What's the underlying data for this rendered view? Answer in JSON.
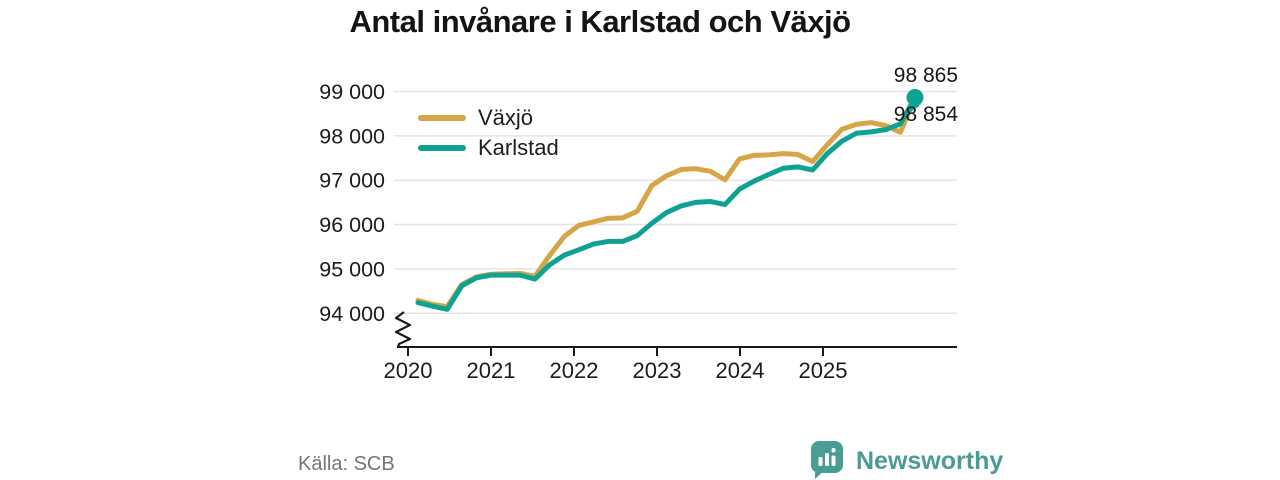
{
  "title": "Antal invånare i Karlstad och Växjö",
  "source": "Källa: SCB",
  "branding": {
    "name": "Newsworthy",
    "color": "#4A9C95"
  },
  "chart_data": {
    "type": "line",
    "title": "Antal invånare i Karlstad och Växjö",
    "ylabel": "",
    "xlabel": "",
    "grid": "horizontal",
    "y_axis": {
      "ticks": [
        {
          "label": "99 000",
          "value": 99000
        },
        {
          "label": "98 000",
          "value": 98000
        },
        {
          "label": "97 000",
          "value": 97000
        },
        {
          "label": "96 000",
          "value": 96000
        },
        {
          "label": "95 000",
          "value": 95000
        },
        {
          "label": "94 000",
          "value": 94000
        }
      ],
      "axis_break": true
    },
    "x_axis": {
      "tick_labels": [
        "2020",
        "2021",
        "2022",
        "2023",
        "2024",
        "2025"
      ]
    },
    "legend": {
      "position": "top-left",
      "items": [
        {
          "label": "Växjö",
          "color": "#D5A547"
        },
        {
          "label": "Karlstad",
          "color": "#0FA294"
        }
      ]
    },
    "series": [
      {
        "name": "Växjö",
        "color": "#D5A547",
        "end_value": 98854,
        "values": [
          94290,
          94200,
          94150,
          94650,
          94820,
          94880,
          94890,
          94900,
          94830,
          95300,
          95730,
          95980,
          96060,
          96140,
          96150,
          96300,
          96880,
          97100,
          97240,
          97260,
          97200,
          97010,
          97480,
          97560,
          97570,
          97600,
          97580,
          97420,
          97800,
          98150,
          98260,
          98300,
          98230,
          98080,
          98854
        ]
      },
      {
        "name": "Karlstad",
        "color": "#0FA294",
        "end_value": 98865,
        "values": [
          94240,
          94160,
          94090,
          94620,
          94800,
          94860,
          94860,
          94860,
          94770,
          95090,
          95310,
          95430,
          95560,
          95620,
          95620,
          95750,
          96030,
          96270,
          96420,
          96500,
          96520,
          96450,
          96800,
          96980,
          97130,
          97270,
          97300,
          97230,
          97600,
          97880,
          98060,
          98090,
          98140,
          98270,
          98865
        ]
      }
    ],
    "end_labels": [
      {
        "text": "98 865",
        "series": "Karlstad"
      },
      {
        "text": "98 854",
        "series": "Växjö"
      }
    ]
  }
}
